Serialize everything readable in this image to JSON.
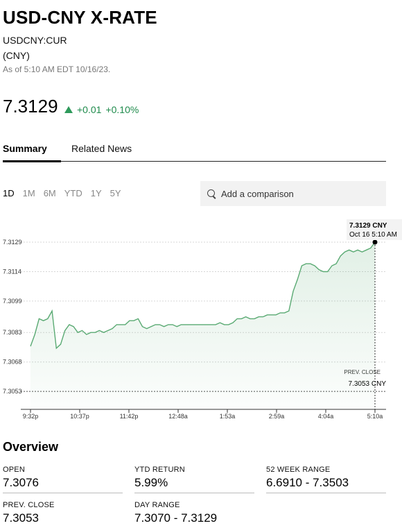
{
  "header": {
    "title": "USD-CNY X-RATE",
    "ticker": "USDCNY:CUR",
    "currency": "(CNY)",
    "as_of": "As of 5:10 AM EDT 10/16/23."
  },
  "quote": {
    "price": "7.3129",
    "change": "+0.01",
    "change_pct": "+0.10%",
    "up_color": "#2e9a5b"
  },
  "tabs": [
    {
      "label": "Summary",
      "active": true
    },
    {
      "label": "Related News",
      "active": false
    }
  ],
  "ranges": [
    {
      "label": "1D",
      "active": true
    },
    {
      "label": "1M",
      "active": false
    },
    {
      "label": "6M",
      "active": false
    },
    {
      "label": "YTD",
      "active": false
    },
    {
      "label": "1Y",
      "active": false
    },
    {
      "label": "5Y",
      "active": false
    }
  ],
  "compare": {
    "placeholder": "Add a comparison",
    "icon": "search-icon"
  },
  "chart_data": {
    "type": "line",
    "series_color": "#5aaa73",
    "x_ticks": [
      "9:32p",
      "10:37p",
      "11:42p",
      "12:48a",
      "1:53a",
      "2:59a",
      "4:04a",
      "5:10a"
    ],
    "y_ticks": [
      "7.3129",
      "7.3114",
      "7.3099",
      "7.3083",
      "7.3068",
      "7.3053"
    ],
    "ylim": [
      7.3046,
      7.3135
    ],
    "values": [
      7.3076,
      7.3082,
      7.309,
      7.3089,
      7.309,
      7.3094,
      7.3075,
      7.3077,
      7.3084,
      7.3087,
      7.3086,
      7.3083,
      7.3084,
      7.3082,
      7.3083,
      7.3083,
      7.3084,
      7.3083,
      7.3084,
      7.3085,
      7.3087,
      7.3087,
      7.3087,
      7.3089,
      7.3089,
      7.309,
      7.3086,
      7.3085,
      7.3086,
      7.3087,
      7.3087,
      7.3086,
      7.3087,
      7.3087,
      7.3086,
      7.3087,
      7.3087,
      7.3087,
      7.3087,
      7.3087,
      7.3087,
      7.3087,
      7.3087,
      7.3087,
      7.3088,
      7.3087,
      7.3087,
      7.3088,
      7.309,
      7.309,
      7.3091,
      7.309,
      7.309,
      7.3091,
      7.3091,
      7.3092,
      7.3092,
      7.3092,
      7.3093,
      7.3093,
      7.3094,
      7.3104,
      7.311,
      7.3117,
      7.3118,
      7.3118,
      7.3117,
      7.3115,
      7.3114,
      7.3114,
      7.3117,
      7.3118,
      7.3122,
      7.3124,
      7.3125,
      7.3124,
      7.3125,
      7.3124,
      7.3125,
      7.3126,
      7.3129
    ],
    "tooltip": {
      "value": "7.3129 CNY",
      "time": "Oct 16 5:10 AM"
    },
    "prev_close": {
      "label": "PREV. CLOSE",
      "value": "7.3053 CNY",
      "level": 7.3053
    },
    "grid": true
  },
  "overview": {
    "title": "Overview",
    "stats": [
      {
        "label": "OPEN",
        "value": "7.3076"
      },
      {
        "label": "YTD RETURN",
        "value": "5.99%"
      },
      {
        "label": "52 WEEK RANGE",
        "value": "6.6910 - 7.3503"
      },
      {
        "label": "PREV. CLOSE",
        "value": "7.3053"
      },
      {
        "label": "DAY RANGE",
        "value": "7.3070 - 7.3129"
      }
    ]
  }
}
